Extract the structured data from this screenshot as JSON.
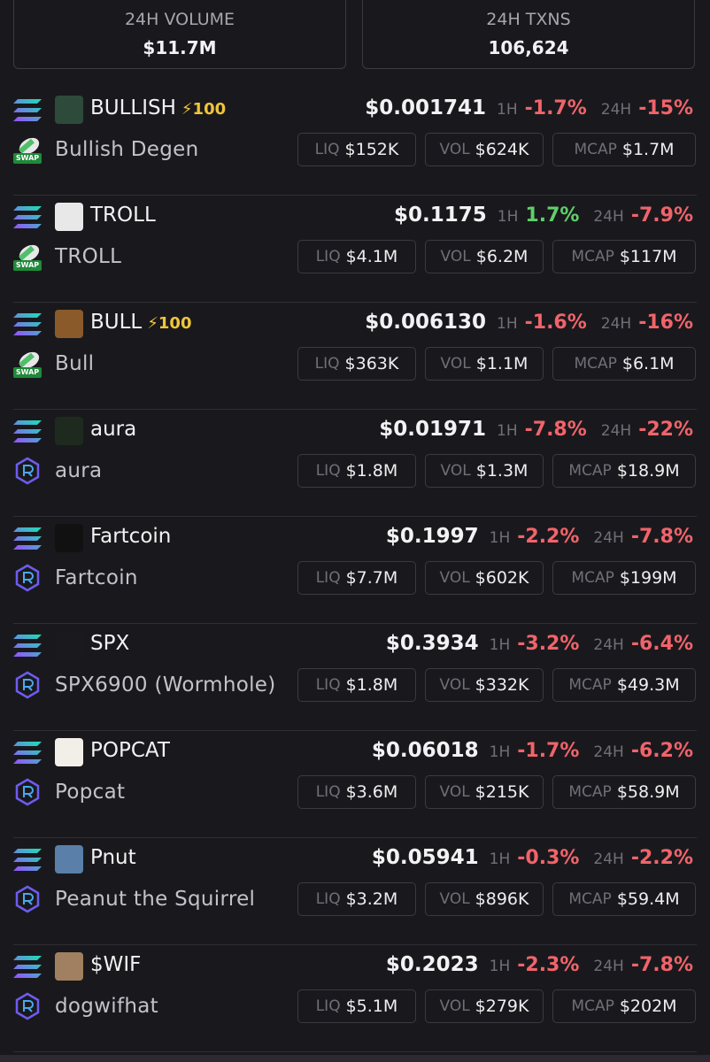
{
  "stats": [
    {
      "label": "24H VOLUME",
      "value": "$11.7M"
    },
    {
      "label": "24H TXNS",
      "value": "106,624"
    }
  ],
  "labels": {
    "h1": "1H",
    "h24": "24H",
    "liq": "LIQ",
    "vol": "VOL",
    "mcap": "MCAP"
  },
  "tokens": [
    {
      "symbol": "BULLISH",
      "boost": "⚡100",
      "dex_badge": "SWAP",
      "name": "Bullish Degen",
      "price": "$0.001741",
      "change_1h": "-1.7%",
      "change_24h": "-15%",
      "liq": "$152K",
      "vol": "$624K",
      "mcap": "$1.7M"
    },
    {
      "symbol": "TROLL",
      "dex_badge": "SWAP",
      "name": "TROLL",
      "price": "$0.1175",
      "change_1h": "1.7%",
      "change_24h": "-7.9%",
      "liq": "$4.1M",
      "vol": "$6.2M",
      "mcap": "$117M"
    },
    {
      "symbol": "BULL",
      "boost": "⚡100",
      "dex_badge": "SWAP",
      "name": "Bull",
      "price": "$0.006130",
      "change_1h": "-1.6%",
      "change_24h": "-16%",
      "liq": "$363K",
      "vol": "$1.1M",
      "mcap": "$6.1M"
    },
    {
      "symbol": "aura",
      "name": "aura",
      "price": "$0.01971",
      "change_1h": "-7.8%",
      "change_24h": "-22%",
      "liq": "$1.8M",
      "vol": "$1.3M",
      "mcap": "$18.9M"
    },
    {
      "symbol": "Fartcoin",
      "name": "Fartcoin",
      "price": "$0.1997",
      "change_1h": "-2.2%",
      "change_24h": "-7.8%",
      "liq": "$7.7M",
      "vol": "$602K",
      "mcap": "$199M"
    },
    {
      "symbol": "SPX",
      "name": "SPX6900 (Wormhole)",
      "price": "$0.3934",
      "change_1h": "-3.2%",
      "change_24h": "-6.4%",
      "liq": "$1.8M",
      "vol": "$332K",
      "mcap": "$49.3M"
    },
    {
      "symbol": "POPCAT",
      "name": "Popcat",
      "price": "$0.06018",
      "change_1h": "-1.7%",
      "change_24h": "-6.2%",
      "liq": "$3.6M",
      "vol": "$215K",
      "mcap": "$58.9M"
    },
    {
      "symbol": "Pnut",
      "name": "Peanut the Squirrel",
      "price": "$0.05941",
      "change_1h": "-0.3%",
      "change_24h": "-2.2%",
      "liq": "$3.2M",
      "vol": "$896K",
      "mcap": "$59.4M"
    },
    {
      "symbol": "$WIF",
      "name": "dogwifhat",
      "price": "$0.2023",
      "change_1h": "-2.3%",
      "change_24h": "-7.8%",
      "liq": "$5.1M",
      "vol": "$279K",
      "mcap": "$202M"
    }
  ]
}
